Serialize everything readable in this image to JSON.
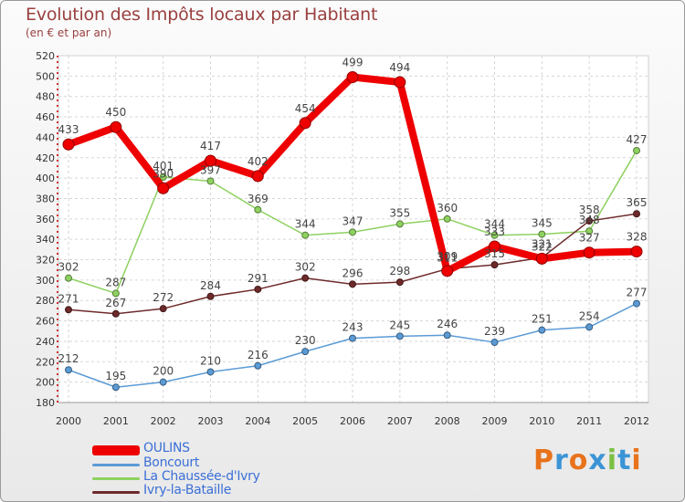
{
  "header": {
    "title": "Evolution des Impôts locaux par Habitant",
    "subtitle": "(en € et par an)"
  },
  "logo": {
    "text": "Proxiti",
    "colors": [
      "#e8731c",
      "#3c94d6",
      "#e8731c",
      "#3c94d6",
      "#7cc043",
      "#3c94d6",
      "#e8731c"
    ]
  },
  "chart_data": {
    "type": "line",
    "title": "Evolution des Impôts locaux par Habitant",
    "subtitle": "(en € et par an)",
    "xlabel": "",
    "ylabel": "",
    "ylim": [
      180,
      520
    ],
    "ytick_step": 20,
    "grid": true,
    "x": [
      "2000",
      "2001",
      "2002",
      "2003",
      "2004",
      "2005",
      "2006",
      "2007",
      "2008",
      "2009",
      "2010",
      "2011",
      "2012"
    ],
    "series": [
      {
        "name": "Boncourt",
        "color": "#5b9bd5",
        "values": [
          212,
          195,
          200,
          210,
          216,
          230,
          243,
          245,
          246,
          239,
          251,
          254,
          277
        ]
      },
      {
        "name": "La Chaussée-d'Ivry",
        "color": "#8ed160",
        "values": [
          302,
          287,
          401,
          397,
          369,
          344,
          347,
          355,
          360,
          344,
          345,
          348,
          427
        ]
      },
      {
        "name": "Ivry-la-Bataille",
        "color": "#6e2a2a",
        "values": [
          271,
          267,
          272,
          284,
          291,
          302,
          296,
          298,
          311,
          315,
          322,
          358,
          365
        ]
      },
      {
        "name": "OULINS",
        "color": "#ee0000",
        "values": [
          433,
          450,
          390,
          417,
          402,
          454,
          499,
          494,
          309,
          333,
          321,
          327,
          328
        ]
      }
    ],
    "legend": {
      "position": "bottom-left",
      "order": [
        "OULINS",
        "Boncourt",
        "La Chaussée-d'Ivry",
        "Ivry-la-Bataille"
      ]
    }
  }
}
